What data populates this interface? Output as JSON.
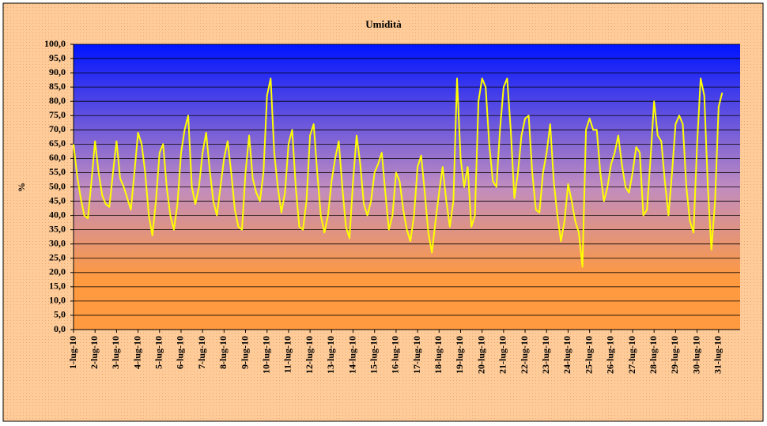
{
  "chart_data": {
    "type": "line",
    "title": "Umidità",
    "y_label": "%",
    "categories": [
      "1-lug-10",
      null,
      null,
      null,
      null,
      null,
      "2-lug-10",
      null,
      null,
      null,
      null,
      null,
      "3-lug-10",
      null,
      null,
      null,
      null,
      null,
      "4-lug-10",
      null,
      null,
      null,
      null,
      null,
      "5-lug-10",
      null,
      null,
      null,
      null,
      null,
      "6-lug-10",
      null,
      null,
      null,
      null,
      null,
      "7-lug-10",
      null,
      null,
      null,
      null,
      null,
      "8-lug-10",
      null,
      null,
      null,
      null,
      null,
      "9-lug-10",
      null,
      null,
      null,
      null,
      null,
      "10-lug-10",
      null,
      null,
      null,
      null,
      null,
      "11-lug-10",
      null,
      null,
      null,
      null,
      null,
      "12-lug-10",
      null,
      null,
      null,
      null,
      null,
      "13-lug-10",
      null,
      null,
      null,
      null,
      null,
      "14-lug-10",
      null,
      null,
      null,
      null,
      null,
      "15-lug-10",
      null,
      null,
      null,
      null,
      null,
      "16-lug-10",
      null,
      null,
      null,
      null,
      null,
      "17-lug-10",
      null,
      null,
      null,
      null,
      null,
      "18-lug-10",
      null,
      null,
      null,
      null,
      null,
      "19-lug-10",
      null,
      null,
      null,
      null,
      null,
      "20-lug-10",
      null,
      null,
      null,
      null,
      null,
      "21-lug-10",
      null,
      null,
      null,
      null,
      null,
      "22-lug-10",
      null,
      null,
      null,
      null,
      null,
      "23-lug-10",
      null,
      null,
      null,
      null,
      null,
      "24-lug-10",
      null,
      null,
      null,
      null,
      null,
      "25-lug-10",
      null,
      null,
      null,
      null,
      null,
      "26-lug-10",
      null,
      null,
      null,
      null,
      null,
      "27-lug-10",
      null,
      null,
      null,
      null,
      null,
      "28-lug-10",
      null,
      null,
      null,
      null,
      null,
      "29-lug-10",
      null,
      null,
      null,
      null,
      null,
      "30-lug-10",
      null,
      null,
      null,
      null,
      null,
      "31-lug-10",
      null,
      null,
      null,
      null,
      null
    ],
    "series": [
      {
        "name": "Umidità",
        "color": "#ffff00",
        "values": [
          65,
          54,
          46,
          40,
          39,
          52,
          66,
          55,
          47,
          44,
          43,
          55,
          66,
          53,
          50,
          46,
          42,
          55,
          69,
          65,
          55,
          40,
          33,
          45,
          62,
          65,
          50,
          40,
          35,
          44,
          62,
          70,
          75,
          50,
          44,
          50,
          62,
          69,
          56,
          45,
          40,
          50,
          60,
          66,
          55,
          42,
          36,
          35,
          55,
          68,
          53,
          48,
          45,
          55,
          82,
          88,
          62,
          50,
          41,
          48,
          65,
          70,
          50,
          36,
          35,
          45,
          68,
          72,
          55,
          40,
          34,
          40,
          52,
          60,
          66,
          50,
          36,
          32,
          52,
          68,
          58,
          44,
          40,
          45,
          55,
          58,
          62,
          48,
          35,
          40,
          55,
          52,
          42,
          35,
          31,
          40,
          57,
          61,
          48,
          34,
          27,
          38,
          48,
          57,
          45,
          36,
          45,
          88,
          60,
          50,
          57,
          36,
          40,
          80,
          88,
          85,
          65,
          52,
          50,
          70,
          85,
          88,
          70,
          46,
          55,
          68,
          74,
          75,
          55,
          42,
          41,
          55,
          62,
          72,
          52,
          40,
          31,
          38,
          51,
          45,
          38,
          34,
          22,
          70,
          74,
          70,
          70,
          55,
          45,
          50,
          58,
          62,
          68,
          58,
          50,
          48,
          55,
          64,
          62,
          40,
          42,
          60,
          80,
          68,
          66,
          52,
          40,
          55,
          72,
          75,
          72,
          50,
          38,
          34,
          65,
          88,
          82,
          50,
          28,
          45,
          78,
          83,
          null,
          null,
          null,
          null
        ]
      }
    ],
    "ylim": [
      0,
      100
    ],
    "yticks": [
      {
        "value": 0,
        "label": "0,0"
      },
      {
        "value": 5,
        "label": "5,0"
      },
      {
        "value": 10,
        "label": "10,0"
      },
      {
        "value": 15,
        "label": "15,0"
      },
      {
        "value": 20,
        "label": "20,0"
      },
      {
        "value": 25,
        "label": "25,0"
      },
      {
        "value": 30,
        "label": "30,0"
      },
      {
        "value": 35,
        "label": "35,0"
      },
      {
        "value": 40,
        "label": "40,0"
      },
      {
        "value": 45,
        "label": "45,0"
      },
      {
        "value": 50,
        "label": "50,0"
      },
      {
        "value": 55,
        "label": "55,0"
      },
      {
        "value": 60,
        "label": "60,0"
      },
      {
        "value": 65,
        "label": "65,0"
      },
      {
        "value": 70,
        "label": "70,0"
      },
      {
        "value": 75,
        "label": "75,0"
      },
      {
        "value": 80,
        "label": "80,0"
      },
      {
        "value": 85,
        "label": "85,0"
      },
      {
        "value": 90,
        "label": "90,0"
      },
      {
        "value": 95,
        "label": "95,0"
      },
      {
        "value": 100,
        "label": "100,0"
      }
    ],
    "grid": true
  }
}
